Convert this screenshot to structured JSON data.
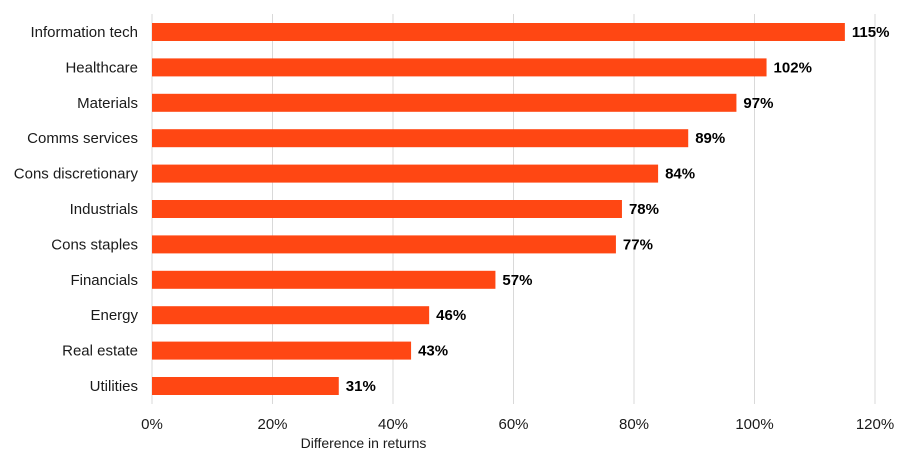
{
  "chart_data": {
    "type": "bar",
    "orientation": "horizontal",
    "categories": [
      "Information tech",
      "Healthcare",
      "Materials",
      "Comms services",
      "Cons discretionary",
      "Industrials",
      "Cons staples",
      "Financials",
      "Energy",
      "Real estate",
      "Utilities"
    ],
    "values": [
      115,
      102,
      97,
      89,
      84,
      78,
      77,
      57,
      46,
      43,
      31
    ],
    "data_labels": [
      "115%",
      "102%",
      "97%",
      "89%",
      "84%",
      "78%",
      "77%",
      "57%",
      "46%",
      "43%",
      "31%"
    ],
    "xlabel": "Difference in returns",
    "xlim": [
      0,
      120
    ],
    "x_ticks": [
      0,
      20,
      40,
      60,
      80,
      100,
      120
    ],
    "x_tick_labels": [
      "0%",
      "20%",
      "40%",
      "60%",
      "80%",
      "100%",
      "120%"
    ],
    "grid": "vertical",
    "bar_color": "#ff4713"
  }
}
